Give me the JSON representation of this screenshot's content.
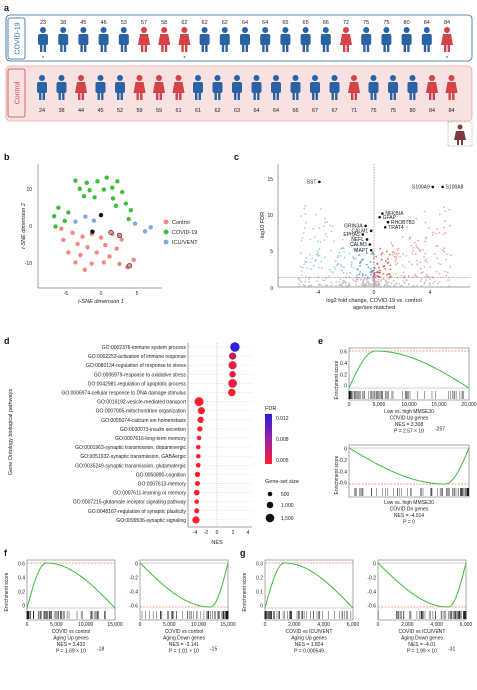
{
  "panels": {
    "a": "a",
    "b": "b",
    "c": "c",
    "d": "d",
    "e": "e",
    "f": "f",
    "g": "g"
  },
  "colors": {
    "covid_blue": "#2a62a6",
    "covid_red": "#d44347",
    "control_pink": "#f6dede",
    "covid_box": "#ffffff",
    "green": "#3dbd3a",
    "red_dash": "#e03a3a"
  },
  "panel_a": {
    "covid_label": "COVID-19",
    "control_label": "Control",
    "covid_ages": [
      "23",
      "38",
      "45",
      "46",
      "53",
      "57",
      "58",
      "62",
      "62",
      "62",
      "64",
      "64",
      "65",
      "65",
      "66",
      "72",
      "75",
      "75",
      "80",
      "84",
      "84"
    ],
    "covid_sex": [
      "m",
      "m",
      "m",
      "m",
      "m",
      "f",
      "f",
      "f",
      "m",
      "m",
      "m",
      "m",
      "m",
      "m",
      "m",
      "f",
      "m",
      "m",
      "m",
      "m",
      "f"
    ],
    "covid_star": [
      true,
      false,
      false,
      false,
      false,
      false,
      false,
      true,
      false,
      false,
      false,
      false,
      false,
      false,
      false,
      false,
      false,
      false,
      false,
      false,
      true
    ],
    "control_ages": [
      "24",
      "38",
      "44",
      "45",
      "52",
      "59",
      "59",
      "61",
      "61",
      "62",
      "63",
      "64",
      "64",
      "66",
      "67",
      "67",
      "71",
      "75",
      "75",
      "80",
      "84",
      "84"
    ],
    "control_sex": [
      "m",
      "m",
      "f",
      "m",
      "m",
      "f",
      "f",
      "f",
      "m",
      "m",
      "m",
      "m",
      "m",
      "m",
      "m",
      "m",
      "f",
      "m",
      "m",
      "m",
      "f",
      "f"
    ]
  },
  "panel_b": {
    "xlabel": "t-SNE dimension 1",
    "ylabel": "t-SNE dimension 2",
    "xticks": [
      "-5",
      "0",
      "5"
    ],
    "yticks": [
      "10",
      "0",
      "-10"
    ],
    "legend": [
      {
        "label": "Control",
        "color": "#f08a7e"
      },
      {
        "label": "COVID-19",
        "color": "#3dbd3a"
      },
      {
        "label": "ICU/VENT",
        "color": "#7fa9e0"
      }
    ],
    "points": [
      {
        "x": -3.6,
        "y": 12.8,
        "g": "covid"
      },
      {
        "x": -2.0,
        "y": 12.2,
        "g": "covid"
      },
      {
        "x": -0.5,
        "y": 12.6,
        "g": "covid"
      },
      {
        "x": 0.8,
        "y": 13.6,
        "g": "covid"
      },
      {
        "x": 2.3,
        "y": 12.6,
        "g": "covid"
      },
      {
        "x": -3.0,
        "y": 10.6,
        "g": "covid"
      },
      {
        "x": -1.6,
        "y": 10.2,
        "g": "covid"
      },
      {
        "x": 0.4,
        "y": 10.4,
        "g": "covid"
      },
      {
        "x": 1.6,
        "y": 10.9,
        "g": "covid"
      },
      {
        "x": 3.0,
        "y": 9.7,
        "g": "covid"
      },
      {
        "x": -2.4,
        "y": 8.6,
        "g": "covid"
      },
      {
        "x": -0.9,
        "y": 8.3,
        "g": "covid"
      },
      {
        "x": 1.7,
        "y": 8.0,
        "g": "covid"
      },
      {
        "x": 3.5,
        "y": 6.6,
        "g": "covid"
      },
      {
        "x": 2.1,
        "y": 6.0,
        "g": "covid"
      },
      {
        "x": -6.0,
        "y": 5.5,
        "g": "covid"
      },
      {
        "x": -4.6,
        "y": 4.2,
        "g": "covid"
      },
      {
        "x": -6.6,
        "y": 3.2,
        "g": "covid"
      },
      {
        "x": -5.1,
        "y": 1.9,
        "g": "covid"
      },
      {
        "x": -6.4,
        "y": 0.4,
        "g": "covid"
      },
      {
        "x": 4.2,
        "y": 4.8,
        "g": "covid"
      },
      {
        "x": 3.9,
        "y": 2.4,
        "g": "covid"
      },
      {
        "x": -2.2,
        "y": 3.1,
        "g": "icu"
      },
      {
        "x": -1.0,
        "y": 2.0,
        "g": "icu"
      },
      {
        "x": -3.6,
        "y": 1.7,
        "g": "icu"
      },
      {
        "x": 6.2,
        "y": -0.9,
        "g": "icu"
      },
      {
        "x": 7.0,
        "y": 0.2,
        "g": "icu"
      },
      {
        "x": 4.8,
        "y": 1.2,
        "g": "icu"
      },
      {
        "x": -5.6,
        "y": -0.2,
        "g": "ctrl"
      },
      {
        "x": -4.0,
        "y": -1.3,
        "g": "ctrl"
      },
      {
        "x": -2.6,
        "y": -2.3,
        "g": "ctrl"
      },
      {
        "x": -1.3,
        "y": -1.6,
        "g": "ctrl"
      },
      {
        "x": 0.0,
        "y": -2.6,
        "g": "ctrl"
      },
      {
        "x": 1.6,
        "y": -1.6,
        "g": "ctrl"
      },
      {
        "x": 2.9,
        "y": -3.1,
        "g": "ctrl"
      },
      {
        "x": -3.3,
        "y": -4.3,
        "g": "ctrl"
      },
      {
        "x": -1.9,
        "y": -5.2,
        "g": "ctrl"
      },
      {
        "x": 0.6,
        "y": -4.6,
        "g": "ctrl"
      },
      {
        "x": 2.2,
        "y": -5.6,
        "g": "ctrl"
      },
      {
        "x": -4.6,
        "y": -6.6,
        "g": "ctrl"
      },
      {
        "x": -2.9,
        "y": -7.3,
        "g": "ctrl"
      },
      {
        "x": -0.6,
        "y": -6.6,
        "g": "ctrl"
      },
      {
        "x": 1.2,
        "y": -7.7,
        "g": "ctrl"
      },
      {
        "x": -1.3,
        "y": -9.6,
        "g": "ctrl"
      },
      {
        "x": 0.4,
        "y": -9.3,
        "g": "ctrl"
      },
      {
        "x": 2.6,
        "y": -9.7,
        "g": "ctrl"
      },
      {
        "x": -3.6,
        "y": -9.3,
        "g": "ctrl"
      },
      {
        "x": 3.7,
        "y": -10.6,
        "g": "ctrl"
      },
      {
        "x": -2.3,
        "y": -11.3,
        "g": "ctrl"
      },
      {
        "x": 4.6,
        "y": -8.6,
        "g": "ctrl"
      },
      {
        "x": -5.3,
        "y": -3.2,
        "g": "ctrl"
      }
    ],
    "black_points": [
      {
        "x": 0.0,
        "y": 3.5
      },
      {
        "x": -1.2,
        "y": -1.0
      }
    ],
    "outlined_points": [
      {
        "x": 1.4,
        "y": -1.2
      },
      {
        "x": 2.6,
        "y": -2.0
      },
      {
        "x": 4.0,
        "y": -10.2
      }
    ]
  },
  "panel_c": {
    "xlabel_line1": "log2 fold change, COVID-19 vs. control",
    "xlabel_line2": "age/sex-matched",
    "ylabel": "-log10 FDR",
    "xticks": [
      "-4",
      "0",
      "4"
    ],
    "yticks": [
      "0",
      "5",
      "10",
      "15"
    ],
    "genes": [
      {
        "label": "SST",
        "x": -3.9,
        "y": 14.6,
        "side": "left"
      },
      {
        "label": "S100A9",
        "x": 4.2,
        "y": 13.9,
        "side": "left"
      },
      {
        "label": "S100A8",
        "x": 4.9,
        "y": 13.9,
        "side": "right"
      },
      {
        "label": "NFKBIA",
        "x": 0.6,
        "y": 10.2,
        "side": "right"
      },
      {
        "label": "GFAP",
        "x": 0.4,
        "y": 9.7,
        "side": "right"
      },
      {
        "label": "RHOBTB3",
        "x": 1.0,
        "y": 9.0,
        "side": "right"
      },
      {
        "label": "TRAT4",
        "x": 0.8,
        "y": 8.3,
        "side": "right"
      },
      {
        "label": "GRIN3A",
        "x": -0.6,
        "y": 8.5,
        "side": "left"
      },
      {
        "label": "CALM1",
        "x": -0.2,
        "y": 7.8,
        "side": "left"
      },
      {
        "label": "EPHA5",
        "x": -0.8,
        "y": 7.3,
        "side": "left"
      },
      {
        "label": "NEFL",
        "x": -0.5,
        "y": 6.6,
        "side": "left"
      },
      {
        "label": "CALM3",
        "x": -0.3,
        "y": 5.9,
        "side": "left"
      },
      {
        "label": "MAPT",
        "x": -0.2,
        "y": 5.1,
        "side": "left"
      }
    ],
    "thresholds": {
      "fdr": 1.3,
      "fc": 0
    }
  },
  "panel_d": {
    "ylabel": "Gene Ontology biological pathways",
    "xlabel": "NES",
    "xticks": [
      "-4",
      "-2",
      "0",
      "2",
      "4"
    ],
    "fdr_title": "FDR",
    "fdr_ticks": [
      "0.012",
      "0.008",
      "0.005"
    ],
    "size_title": "Gene-set size",
    "size_labels": [
      "500",
      "1,000",
      "1,500"
    ],
    "terms": [
      {
        "label": "GO:0002376-immune system process",
        "nes": 2.3,
        "fdr": 0.012,
        "size": 1500
      },
      {
        "label": "GO:0002253-activation of immune response",
        "nes": 2.0,
        "fdr": 0.007,
        "size": 700
      },
      {
        "label": "GO:0080134-regulation of response to stress",
        "nes": 2.0,
        "fdr": 0.006,
        "size": 1000
      },
      {
        "label": "GO:0006979-response to oxidative stress",
        "nes": 2.0,
        "fdr": 0.006,
        "size": 500
      },
      {
        "label": "GO:0042981-regulation of apoptotic process",
        "nes": 2.0,
        "fdr": 0.006,
        "size": 1200
      },
      {
        "label": "GO:0006974-cellular response to DNA damage stimulus",
        "nes": 1.9,
        "fdr": 0.005,
        "size": 800
      },
      {
        "label": "GO:0016192-vesicle-mediated transport",
        "nes": -2.3,
        "fdr": 0.005,
        "size": 1300
      },
      {
        "label": "GO:0007005-mitochondrion organization",
        "nes": -2.0,
        "fdr": 0.005,
        "size": 650
      },
      {
        "label": "GO:0055074-calcium ion homeostasis",
        "nes": -2.1,
        "fdr": 0.005,
        "size": 450
      },
      {
        "label": "GO:0030073-insulin secretion",
        "nes": -2.2,
        "fdr": 0.005,
        "size": 250
      },
      {
        "label": "GO:0007616-long-term memory",
        "nes": -2.3,
        "fdr": 0.005,
        "size": 120
      },
      {
        "label": "GO:0001963-synaptic transmission, dopaminergic",
        "nes": -2.4,
        "fdr": 0.005,
        "size": 120
      },
      {
        "label": "GO:0051932-synaptic transmission, GABAergic",
        "nes": -2.4,
        "fdr": 0.005,
        "size": 120
      },
      {
        "label": "GO:0035249-synaptic transmission, glutamatergic",
        "nes": -2.4,
        "fdr": 0.005,
        "size": 150
      },
      {
        "label": "GO:0050890-cognition",
        "nes": -2.5,
        "fdr": 0.005,
        "size": 250
      },
      {
        "label": "GO:0007613-memory",
        "nes": -2.5,
        "fdr": 0.005,
        "size": 200
      },
      {
        "label": "GO:0007611-learning or memory",
        "nes": -2.6,
        "fdr": 0.005,
        "size": 300
      },
      {
        "label": "GO:0007215-glutamate receptor signaling pathway",
        "nes": -2.6,
        "fdr": 0.005,
        "size": 120
      },
      {
        "label": "GO:0048167-regulation of synaptic plasticity",
        "nes": -2.6,
        "fdr": 0.005,
        "size": 200
      },
      {
        "label": "GO:0099536-synaptic signaling",
        "nes": -2.7,
        "fdr": 0.005,
        "size": 700
      }
    ]
  },
  "panel_e": {
    "ylabel": "Enrichment score",
    "top": {
      "yticks": [
        "0.6",
        "0.4",
        "0.2",
        "0"
      ],
      "xticks": [
        "0",
        "5,000",
        "10,000",
        "15,000",
        "20,000"
      ],
      "caption": [
        "Low vs. high MMSE30",
        "COVID Up genes",
        "NES = 3.308",
        "P = 2.57 × 10",
        "-257"
      ]
    },
    "bottom": {
      "yticks": [
        "0",
        "-0.2",
        "-0.4",
        "-0.6"
      ],
      "caption": [
        "Low vs. high MMSE30",
        "COVID Dn genes",
        "NES = -4.014",
        "P = 0"
      ]
    }
  },
  "panel_f": {
    "ylabel": "Enrichment score",
    "left": {
      "yticks": [
        "0.6",
        "0.4",
        "0.2",
        "0"
      ],
      "xticks": [
        "0",
        "5,000",
        "10,000",
        "15,000"
      ],
      "caption": [
        "COVID vs control",
        "Aging Up genes",
        "NES = 3.432",
        "P = 1.69 × 10",
        "-18"
      ]
    },
    "right": {
      "yticks": [
        "0",
        "-0.2",
        "-0.4",
        "-0.6"
      ],
      "xticks": [
        "0",
        "5,000",
        "10,000",
        "15,000"
      ],
      "caption": [
        "COVID vs control",
        "Aging Down genes",
        "NES = -3.141",
        "P = 1.01 × 10",
        "-15"
      ]
    }
  },
  "panel_g": {
    "ylabel": "Enrichment score",
    "left": {
      "yticks": [
        "0.3",
        "0.2",
        "0.1",
        "0"
      ],
      "xticks": [
        "0",
        "2,000",
        "4,000",
        "6,000"
      ],
      "caption": [
        "COVID vs ICU/VENT",
        "Aging Up genes",
        "NES = 1.824",
        "P = 0.000549"
      ]
    },
    "right": {
      "yticks": [
        "0",
        "-0.2",
        "-0.4",
        "-0.6"
      ],
      "xticks": [
        "0",
        "2,000",
        "4,000",
        "6,000"
      ],
      "caption": [
        "COVID vs ICU/VENT",
        "Aging Down genes",
        "NES = -4.01",
        "P = 1.99 × 10",
        "-31"
      ]
    }
  }
}
